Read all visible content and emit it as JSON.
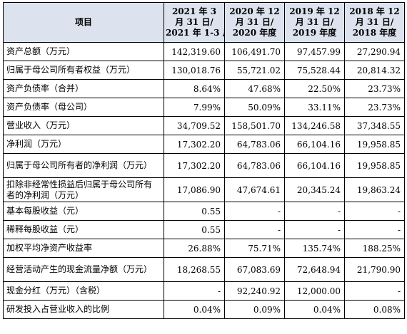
{
  "table": {
    "headers": [
      {
        "lines": [
          "项目"
        ]
      },
      {
        "lines": [
          "2021 年 3",
          "月 31 日/",
          "2021 年 1-3 月"
        ]
      },
      {
        "lines": [
          "2020 年 12",
          "月 31 日/",
          "2020 年度"
        ]
      },
      {
        "lines": [
          "2019 年 12",
          "月 31 日/",
          "2019 年度"
        ]
      },
      {
        "lines": [
          "2018 年 12",
          "月 31 日/",
          "2018 年度"
        ]
      }
    ],
    "rows": [
      {
        "label": "资产总额（万元）",
        "values": [
          "142,319.60",
          "106,491.70",
          "97,457.99",
          "27,290.94"
        ]
      },
      {
        "label": "归属于母公司所有者权益（万元）",
        "values": [
          "130,018.76",
          "55,721.02",
          "75,528.44",
          "20,814.32"
        ]
      },
      {
        "label": "资产负债率（合并）",
        "values": [
          "8.64%",
          "47.68%",
          "22.50%",
          "23.73%"
        ]
      },
      {
        "label": "资产负债率（母公司）",
        "values": [
          "7.99%",
          "50.09%",
          "33.11%",
          "23.73%"
        ]
      },
      {
        "label": "营业收入（万元）",
        "values": [
          "34,709.52",
          "158,501.70",
          "134,246.58",
          "37,348.55"
        ]
      },
      {
        "label": "净利润（万元）",
        "values": [
          "17,302.20",
          "64,783.06",
          "66,104.16",
          "19,958.85"
        ]
      },
      {
        "label": "归属于母公司所有者的净利润（万元）",
        "values": [
          "17,302.20",
          "64,783.06",
          "66,104.16",
          "19,958.85"
        ]
      },
      {
        "label": "扣除非经常性损益后归属于母公司所有者的净利润（万元）",
        "values": [
          "17,086.90",
          "47,674.61",
          "20,345.24",
          "19,863.24"
        ]
      },
      {
        "label": "基本每股收益（元）",
        "values": [
          "0.55",
          "-",
          "-",
          "-"
        ]
      },
      {
        "label": "稀释每股收益（元）",
        "values": [
          "0.55",
          "-",
          "-",
          "-"
        ]
      },
      {
        "label": "加权平均净资产收益率",
        "values": [
          "26.88%",
          "75.71%",
          "135.74%",
          "188.25%"
        ]
      },
      {
        "label": "经营活动产生的现金流量净额（万元）",
        "values": [
          "18,268.55",
          "67,083.69",
          "72,648.94",
          "21,790.90"
        ]
      },
      {
        "label": "现金分红（万元）（含税）",
        "values": [
          "-",
          "92,240.92",
          "12,000.00",
          "-"
        ]
      },
      {
        "label": "研发投入占营业收入的比例",
        "values": [
          "0.04%",
          "0.09%",
          "0.04%",
          "0.08%"
        ]
      }
    ]
  }
}
